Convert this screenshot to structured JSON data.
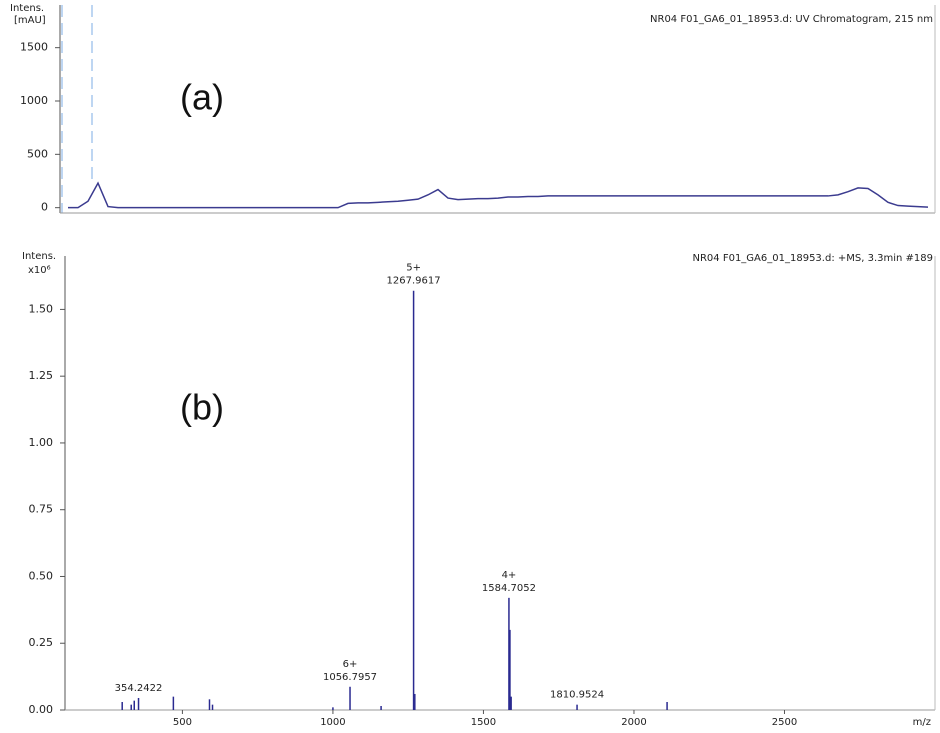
{
  "chart_data": [
    {
      "type": "line",
      "title": "NR04 F01_GA6_01_18953.d: UV Chromatogram, 215 nm",
      "ylabel": "Intens.",
      "yunit": "[mAU]",
      "annotation": "(a)",
      "color": "#3b3b8f",
      "ylim": [
        -50,
        1900
      ],
      "yticks": [
        0,
        500,
        1000,
        1500
      ],
      "values": [
        0,
        0,
        60,
        230,
        10,
        0,
        0,
        0,
        0,
        0,
        0,
        0,
        0,
        0,
        0,
        0,
        0,
        0,
        0,
        0,
        0,
        0,
        0,
        0,
        0,
        0,
        0,
        0,
        40,
        45,
        45,
        50,
        55,
        60,
        70,
        80,
        120,
        170,
        90,
        75,
        80,
        85,
        85,
        90,
        100,
        100,
        105,
        105,
        110,
        110,
        110,
        110,
        110,
        110,
        110,
        110,
        110,
        110,
        110,
        110,
        110,
        110,
        110,
        110,
        110,
        110,
        110,
        110,
        110,
        110,
        110,
        110,
        110,
        110,
        110,
        110,
        110,
        120,
        150,
        185,
        180,
        120,
        50,
        20,
        15,
        10,
        5
      ]
    },
    {
      "type": "stem",
      "title": "NR04 F01_GA6_01_18953.d: +MS, 3.3min #189",
      "ylabel": "Intens.",
      "yscale": "x10⁶",
      "xlabel": "m/z",
      "annotation": "(b)",
      "color": "#2a2a90",
      "xlim": [
        110,
        3000
      ],
      "xticks": [
        500,
        1000,
        1500,
        2000,
        2500
      ],
      "ylim": [
        0,
        1.7
      ],
      "yticks": [
        {
          "value": 0,
          "label": "0.00"
        },
        {
          "value": 0.25,
          "label": "0.25"
        },
        {
          "value": 0.5,
          "label": "0.50"
        },
        {
          "value": 0.75,
          "label": "0.75"
        },
        {
          "value": 1,
          "label": "1.00"
        },
        {
          "value": 1.25,
          "label": "1.25"
        },
        {
          "value": 1.5,
          "label": "1.50"
        }
      ],
      "x": [
        300,
        330,
        340,
        354.2422,
        470,
        590,
        600,
        1000,
        1056.7957,
        1160,
        1267.9617,
        1272,
        1584.7052,
        1588,
        1592,
        1810.9524,
        2110
      ],
      "values": [
        0.03,
        0.02,
        0.035,
        0.045,
        0.05,
        0.04,
        0.02,
        0.01,
        0.087,
        0.015,
        1.57,
        0.06,
        0.42,
        0.3,
        0.05,
        0.02,
        0.03
      ],
      "labels": [
        null,
        null,
        null,
        "354.2422",
        null,
        null,
        null,
        null,
        "1056.7957",
        null,
        "1267.9617",
        null,
        "1584.7052",
        null,
        null,
        "1810.9524",
        null
      ],
      "charges": [
        null,
        null,
        null,
        null,
        null,
        null,
        null,
        null,
        "6+",
        null,
        "5+",
        null,
        "4+",
        null,
        null,
        null,
        null
      ]
    }
  ]
}
